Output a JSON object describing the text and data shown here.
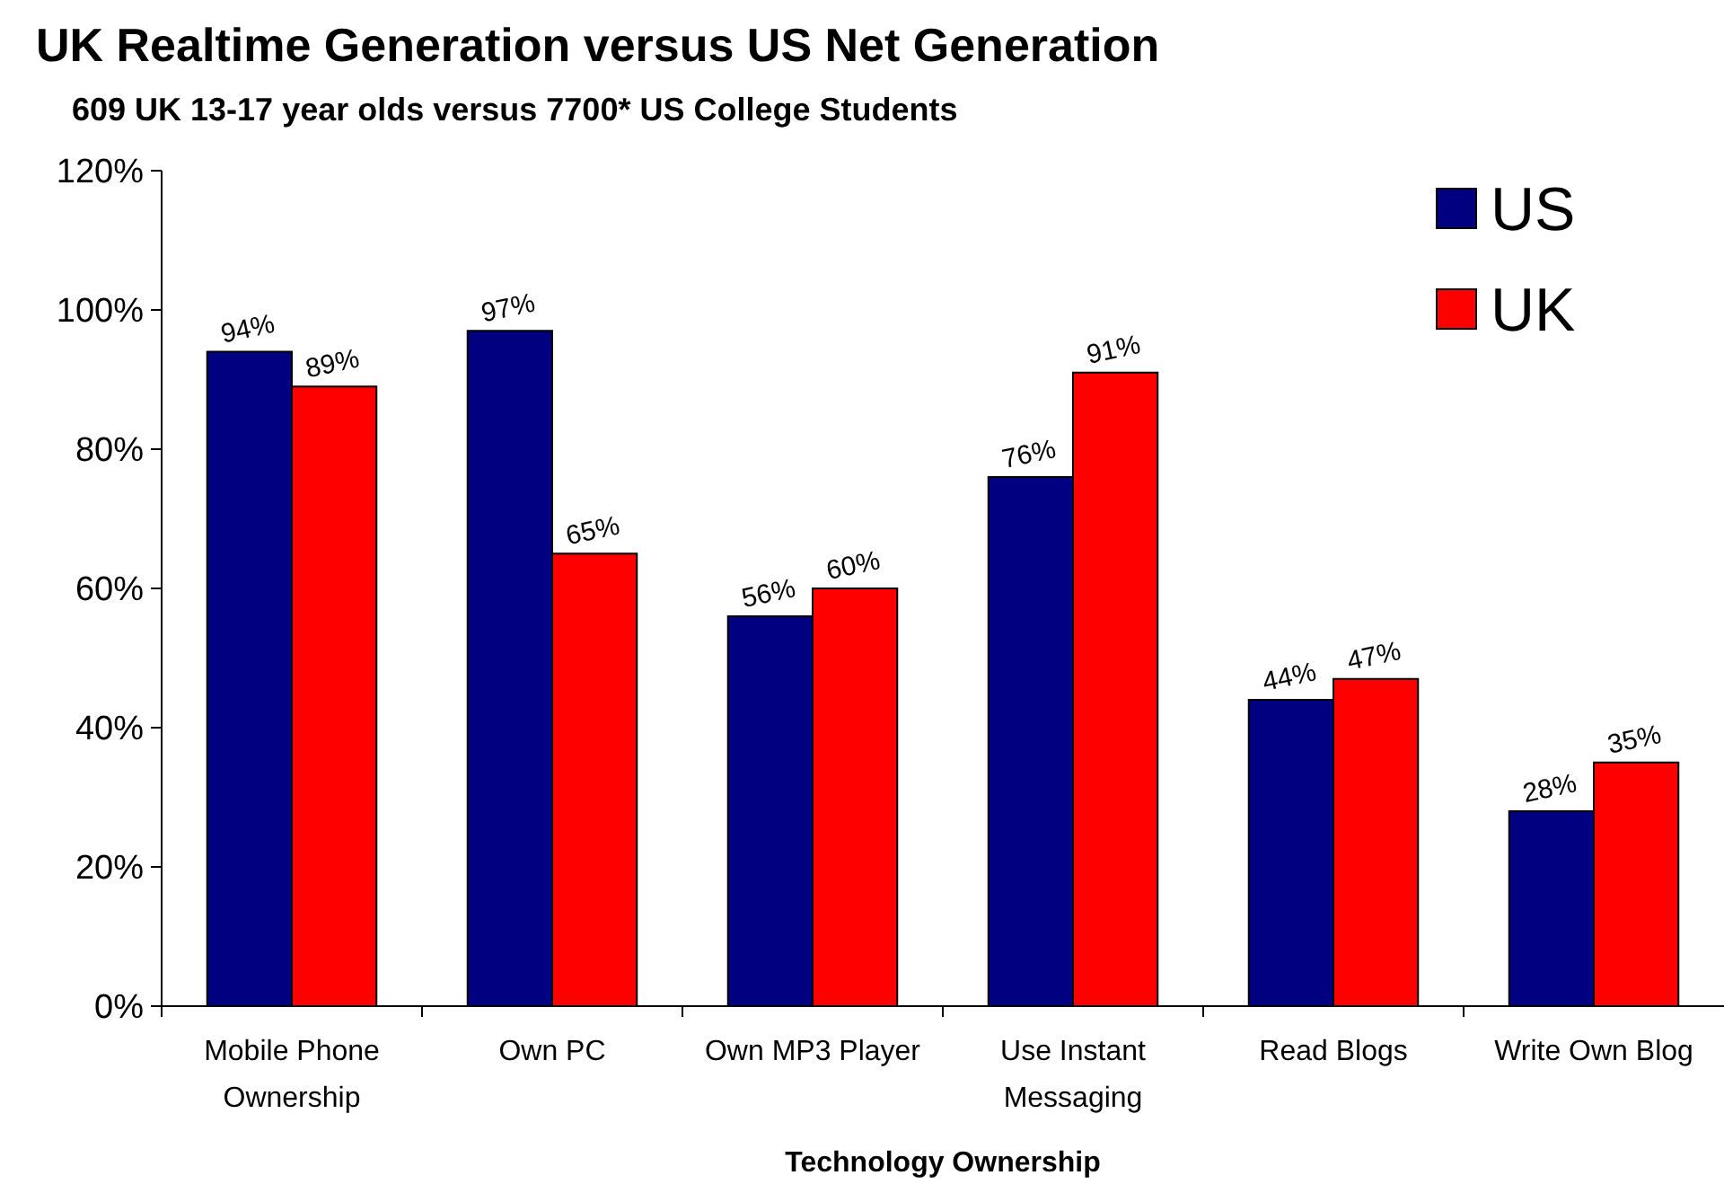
{
  "chart_data": {
    "type": "bar",
    "title": "UK Realtime Generation versus US Net Generation",
    "subtitle": "609 UK 13-17 year olds versus 7700* US College Students",
    "xlabel": "Technology Ownership",
    "categories": [
      "Mobile Phone Ownership",
      "Own PC",
      "Own MP3 Player",
      "Use Instant Messaging",
      "Read Blogs",
      "Write Own Blog"
    ],
    "series": [
      {
        "name": "US",
        "color": "#000080",
        "values": [
          94,
          97,
          56,
          76,
          44,
          28
        ]
      },
      {
        "name": "UK",
        "color": "#ff0000",
        "values": [
          89,
          65,
          60,
          91,
          47,
          35
        ]
      }
    ],
    "ylim": [
      0,
      120
    ],
    "yticks": [
      {
        "value": 0,
        "label": "0%"
      },
      {
        "value": 20,
        "label": "20%"
      },
      {
        "value": 40,
        "label": "40%"
      },
      {
        "value": 60,
        "label": "60%"
      },
      {
        "value": 80,
        "label": "80%"
      },
      {
        "value": 100,
        "label": "100%"
      },
      {
        "value": 120,
        "label": "120%"
      }
    ],
    "value_labels": [
      [
        "94%",
        "97%",
        "56%",
        "76%",
        "44%",
        "28%"
      ],
      [
        "89%",
        "65%",
        "60%",
        "91%",
        "47%",
        "35%"
      ]
    ],
    "legend": "top right",
    "grid": false
  }
}
